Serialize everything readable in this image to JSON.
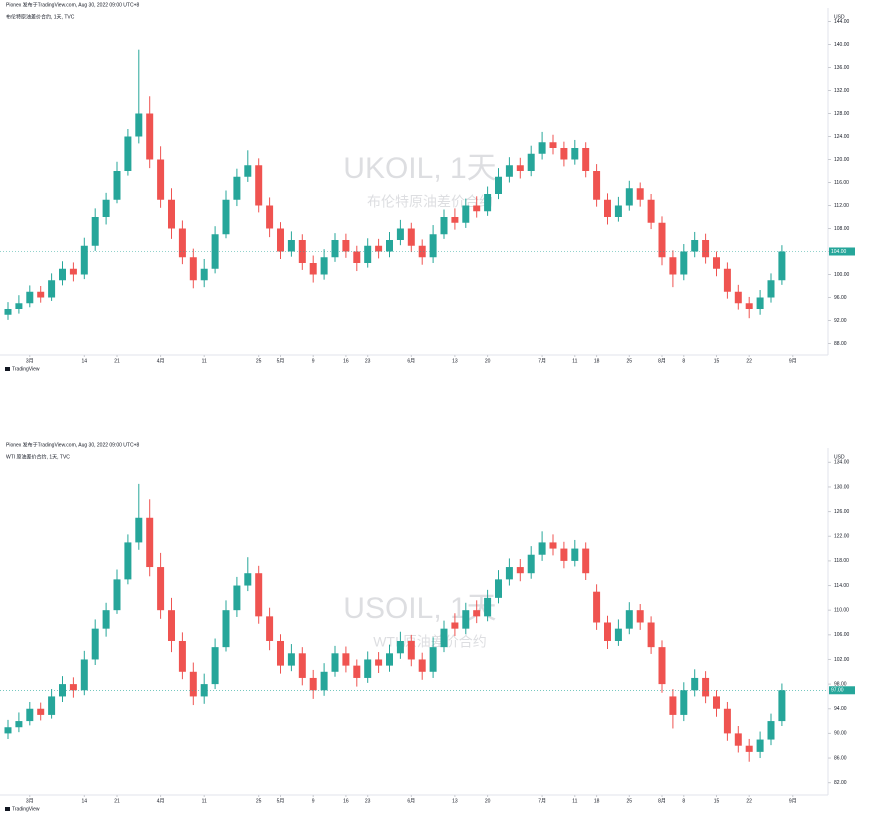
{
  "chart_data": [
    {
      "type": "candlestick",
      "publisher": "Pionex 发布于TradingView.com, Aug 30, 2022 09:00 UTC+8",
      "legend": "布伦特原油差价合约, 1天, TVC",
      "watermark": "UKOIL, 1天",
      "watermark_sub": "布伦特原油差价合约",
      "currency": "USD",
      "brand": "TradingView",
      "last_label": "104.00",
      "up_color": "#26a69a",
      "down_color": "#ef5350",
      "ylim": [
        86,
        146
      ],
      "yticks": [
        {
          "value": 88,
          "label": "88.00"
        },
        {
          "value": 92,
          "label": "92.00"
        },
        {
          "value": 96,
          "label": "96.00"
        },
        {
          "value": 100,
          "label": "100.00"
        },
        {
          "value": 104,
          "label": "104.00"
        },
        {
          "value": 108,
          "label": "108.00"
        },
        {
          "value": 112,
          "label": "112.00"
        },
        {
          "value": 116,
          "label": "116.00"
        },
        {
          "value": 120,
          "label": "120.00"
        },
        {
          "value": 124,
          "label": "124.00"
        },
        {
          "value": 128,
          "label": "128.00"
        },
        {
          "value": 132,
          "label": "132.00"
        },
        {
          "value": 136,
          "label": "136.00"
        },
        {
          "value": 140,
          "label": "140.00"
        },
        {
          "value": 144,
          "label": "144.00"
        }
      ],
      "xticks": [
        {
          "value": 2,
          "label": "3月"
        },
        {
          "value": 7,
          "label": "14"
        },
        {
          "value": 10,
          "label": "21"
        },
        {
          "value": 14,
          "label": "4月"
        },
        {
          "value": 18,
          "label": "11"
        },
        {
          "value": 23,
          "label": "25"
        },
        {
          "value": 25,
          "label": "5月"
        },
        {
          "value": 28,
          "label": "9"
        },
        {
          "value": 31,
          "label": "16"
        },
        {
          "value": 33,
          "label": "23"
        },
        {
          "value": 37,
          "label": "6月"
        },
        {
          "value": 41,
          "label": "13"
        },
        {
          "value": 44,
          "label": "20"
        },
        {
          "value": 49,
          "label": "7月"
        },
        {
          "value": 52,
          "label": "11"
        },
        {
          "value": 54,
          "label": "18"
        },
        {
          "value": 57,
          "label": "25"
        },
        {
          "value": 60,
          "label": "8月"
        },
        {
          "value": 62,
          "label": "8"
        },
        {
          "value": 65,
          "label": "15"
        },
        {
          "value": 68,
          "label": "22"
        },
        {
          "value": 72,
          "label": "9月"
        }
      ],
      "ohlc": [
        [
          93,
          95.2,
          92.1,
          94
        ],
        [
          94,
          96.4,
          93.2,
          95
        ],
        [
          95,
          98.1,
          94.3,
          97
        ],
        [
          97,
          98.0,
          95.1,
          96
        ],
        [
          96,
          100.2,
          95.4,
          99
        ],
        [
          99,
          102.3,
          98.1,
          101
        ],
        [
          101,
          102.1,
          98.8,
          100
        ],
        [
          100,
          106.4,
          99.2,
          105
        ],
        [
          105,
          111.5,
          104.1,
          110
        ],
        [
          110,
          114.2,
          108.7,
          113
        ],
        [
          113,
          119.6,
          112.4,
          118
        ],
        [
          118,
          125.3,
          117.2,
          124
        ],
        [
          124,
          139.1,
          122.8,
          128
        ],
        [
          128,
          131.0,
          118.5,
          120
        ],
        [
          120,
          122.3,
          111.6,
          113
        ],
        [
          113,
          115.0,
          106.2,
          108
        ],
        [
          108,
          109.4,
          101.8,
          103
        ],
        [
          103,
          104.5,
          97.6,
          99
        ],
        [
          99,
          102.7,
          97.8,
          101
        ],
        [
          101,
          108.4,
          100.2,
          107
        ],
        [
          107,
          114.6,
          106.3,
          113
        ],
        [
          113,
          118.4,
          111.9,
          117
        ],
        [
          117,
          121.6,
          116.1,
          119
        ],
        [
          119,
          120.2,
          110.8,
          112
        ],
        [
          112,
          113.4,
          106.5,
          108
        ],
        [
          108,
          109.1,
          102.7,
          104
        ],
        [
          104,
          107.5,
          103.1,
          106
        ],
        [
          106,
          107.0,
          100.8,
          102
        ],
        [
          102,
          103.3,
          98.6,
          100
        ],
        [
          100,
          104.4,
          99.1,
          103
        ],
        [
          103,
          107.2,
          102.2,
          106
        ],
        [
          106,
          107.1,
          102.9,
          104
        ],
        [
          104,
          105.0,
          100.6,
          102
        ],
        [
          102,
          106.3,
          101.2,
          105
        ],
        [
          105,
          106.2,
          102.8,
          104
        ],
        [
          104,
          107.4,
          103.0,
          106
        ],
        [
          106,
          109.5,
          105.1,
          108
        ],
        [
          108,
          109.0,
          103.9,
          105
        ],
        [
          105,
          106.1,
          101.7,
          103
        ],
        [
          103,
          108.6,
          102.0,
          107
        ],
        [
          107,
          111.3,
          106.2,
          110
        ],
        [
          110,
          111.5,
          107.8,
          109
        ],
        [
          109,
          113.2,
          108.1,
          112
        ],
        [
          112,
          113.6,
          109.9,
          111
        ],
        [
          111,
          115.3,
          110.2,
          114
        ],
        [
          114,
          118.5,
          113.1,
          117
        ],
        [
          117,
          120.4,
          116.0,
          119
        ],
        [
          119,
          120.3,
          116.7,
          118
        ],
        [
          118,
          122.4,
          117.1,
          121
        ],
        [
          121,
          124.8,
          120.0,
          123
        ],
        [
          123,
          124.3,
          120.9,
          122
        ],
        [
          122,
          123.1,
          118.8,
          120
        ],
        [
          120,
          123.4,
          119.1,
          122
        ],
        [
          122,
          123.0,
          116.9,
          118
        ],
        [
          118,
          119.2,
          111.8,
          113
        ],
        [
          113,
          114.1,
          108.7,
          110
        ],
        [
          110,
          113.5,
          109.2,
          112
        ],
        [
          112,
          116.3,
          111.1,
          115
        ],
        [
          115,
          116.0,
          111.8,
          113
        ],
        [
          113,
          114.0,
          107.9,
          109
        ],
        [
          109,
          110.1,
          101.6,
          103
        ],
        [
          103,
          104.2,
          97.8,
          100
        ],
        [
          100,
          105.3,
          99.0,
          104
        ],
        [
          104,
          107.4,
          103.0,
          106
        ],
        [
          106,
          107.1,
          101.9,
          103
        ],
        [
          103,
          104.0,
          99.7,
          101
        ],
        [
          101,
          102.1,
          95.8,
          97
        ],
        [
          97,
          98.2,
          93.9,
          95
        ],
        [
          95,
          96.1,
          92.4,
          94
        ],
        [
          94,
          97.3,
          93.0,
          96
        ],
        [
          96,
          100.2,
          95.1,
          99
        ],
        [
          99,
          105.1,
          98.2,
          104
        ]
      ]
    },
    {
      "type": "candlestick",
      "publisher": "Pionex 发布于TradingView.com, Aug 30, 2022 09:00 UTC+8",
      "legend": "WTI 原油差价合约, 1天, TVC",
      "watermark": "USOIL, 1天",
      "watermark_sub": "WTI 原油差价合约",
      "currency": "USD",
      "brand": "TradingView",
      "last_label": "97.00",
      "up_color": "#26a69a",
      "down_color": "#ef5350",
      "ylim": [
        80,
        136
      ],
      "yticks": [
        {
          "value": 82,
          "label": "82.00"
        },
        {
          "value": 86,
          "label": "86.00"
        },
        {
          "value": 90,
          "label": "90.00"
        },
        {
          "value": 94,
          "label": "94.00"
        },
        {
          "value": 98,
          "label": "98.00"
        },
        {
          "value": 102,
          "label": "102.00"
        },
        {
          "value": 106,
          "label": "106.00"
        },
        {
          "value": 110,
          "label": "110.00"
        },
        {
          "value": 114,
          "label": "114.00"
        },
        {
          "value": 118,
          "label": "118.00"
        },
        {
          "value": 122,
          "label": "122.00"
        },
        {
          "value": 126,
          "label": "126.00"
        },
        {
          "value": 130,
          "label": "130.00"
        },
        {
          "value": 134,
          "label": "134.00"
        }
      ],
      "xticks": [
        {
          "value": 2,
          "label": "3月"
        },
        {
          "value": 7,
          "label": "14"
        },
        {
          "value": 10,
          "label": "21"
        },
        {
          "value": 14,
          "label": "4月"
        },
        {
          "value": 18,
          "label": "11"
        },
        {
          "value": 23,
          "label": "25"
        },
        {
          "value": 25,
          "label": "5月"
        },
        {
          "value": 28,
          "label": "9"
        },
        {
          "value": 31,
          "label": "16"
        },
        {
          "value": 33,
          "label": "23"
        },
        {
          "value": 37,
          "label": "6月"
        },
        {
          "value": 41,
          "label": "13"
        },
        {
          "value": 44,
          "label": "20"
        },
        {
          "value": 49,
          "label": "7月"
        },
        {
          "value": 52,
          "label": "11"
        },
        {
          "value": 54,
          "label": "18"
        },
        {
          "value": 57,
          "label": "25"
        },
        {
          "value": 60,
          "label": "8月"
        },
        {
          "value": 62,
          "label": "8"
        },
        {
          "value": 65,
          "label": "15"
        },
        {
          "value": 68,
          "label": "22"
        },
        {
          "value": 72,
          "label": "9月"
        }
      ],
      "ohlc": [
        [
          90,
          92.2,
          89.1,
          91
        ],
        [
          91,
          93.4,
          90.2,
          92
        ],
        [
          92,
          95.1,
          91.3,
          94
        ],
        [
          94,
          95.0,
          92.1,
          93
        ],
        [
          93,
          97.2,
          92.4,
          96
        ],
        [
          96,
          99.3,
          95.1,
          98
        ],
        [
          98,
          99.1,
          95.8,
          97
        ],
        [
          97,
          103.4,
          96.2,
          102
        ],
        [
          102,
          108.5,
          101.1,
          107
        ],
        [
          107,
          111.2,
          105.7,
          110
        ],
        [
          110,
          116.6,
          109.4,
          115
        ],
        [
          115,
          122.3,
          114.2,
          121
        ],
        [
          121,
          130.5,
          119.8,
          125
        ],
        [
          125,
          128.0,
          115.5,
          117
        ],
        [
          117,
          119.3,
          108.6,
          110
        ],
        [
          110,
          112.0,
          103.2,
          105
        ],
        [
          105,
          106.4,
          98.8,
          100
        ],
        [
          100,
          101.5,
          94.6,
          96
        ],
        [
          96,
          99.7,
          94.8,
          98
        ],
        [
          98,
          105.4,
          97.2,
          104
        ],
        [
          104,
          111.6,
          103.3,
          110
        ],
        [
          110,
          115.4,
          108.9,
          114
        ],
        [
          114,
          118.6,
          113.1,
          116
        ],
        [
          116,
          117.2,
          107.8,
          109
        ],
        [
          109,
          110.4,
          103.5,
          105
        ],
        [
          105,
          106.1,
          99.7,
          101
        ],
        [
          101,
          104.5,
          100.1,
          103
        ],
        [
          103,
          104.0,
          97.8,
          99
        ],
        [
          99,
          100.3,
          95.6,
          97
        ],
        [
          97,
          101.4,
          96.1,
          100
        ],
        [
          100,
          104.2,
          99.2,
          103
        ],
        [
          103,
          104.1,
          99.9,
          101
        ],
        [
          101,
          102.0,
          97.6,
          99
        ],
        [
          99,
          103.3,
          98.2,
          102
        ],
        [
          102,
          103.2,
          99.8,
          101
        ],
        [
          101,
          104.4,
          100.0,
          103
        ],
        [
          103,
          106.5,
          102.1,
          105
        ],
        [
          105,
          106.0,
          100.9,
          102
        ],
        [
          102,
          103.1,
          98.7,
          100
        ],
        [
          100,
          105.6,
          99.0,
          104
        ],
        [
          104,
          108.3,
          103.2,
          107
        ],
        [
          108,
          109.5,
          105.8,
          107
        ],
        [
          107,
          111.2,
          106.1,
          110
        ],
        [
          110,
          111.6,
          107.9,
          109
        ],
        [
          109,
          113.3,
          108.2,
          112
        ],
        [
          112,
          116.5,
          111.1,
          115
        ],
        [
          115,
          118.4,
          114.0,
          117
        ],
        [
          117,
          118.3,
          114.7,
          116
        ],
        [
          116,
          120.4,
          115.1,
          119
        ],
        [
          119,
          122.8,
          118.0,
          121
        ],
        [
          121,
          122.3,
          118.9,
          120
        ],
        [
          120,
          121.1,
          116.8,
          118
        ],
        [
          118,
          121.4,
          117.1,
          120
        ],
        [
          120,
          121.0,
          114.9,
          116
        ],
        [
          113,
          114.2,
          106.8,
          108
        ],
        [
          108,
          109.1,
          103.7,
          105
        ],
        [
          105,
          108.5,
          104.2,
          107
        ],
        [
          107,
          111.3,
          106.1,
          110
        ],
        [
          110,
          111.0,
          106.8,
          108
        ],
        [
          108,
          109.0,
          102.9,
          104
        ],
        [
          104,
          105.1,
          96.6,
          98
        ],
        [
          96,
          97.2,
          90.8,
          93
        ],
        [
          93,
          98.3,
          92.0,
          97
        ],
        [
          97,
          100.4,
          96.0,
          99
        ],
        [
          99,
          100.1,
          94.9,
          96
        ],
        [
          96,
          97.0,
          92.7,
          94
        ],
        [
          94,
          95.1,
          88.8,
          90
        ],
        [
          90,
          91.2,
          86.9,
          88
        ],
        [
          88,
          89.1,
          85.4,
          87
        ],
        [
          87,
          90.3,
          86.0,
          89
        ],
        [
          89,
          93.2,
          88.1,
          92
        ],
        [
          92,
          98.1,
          91.2,
          97
        ]
      ]
    }
  ]
}
